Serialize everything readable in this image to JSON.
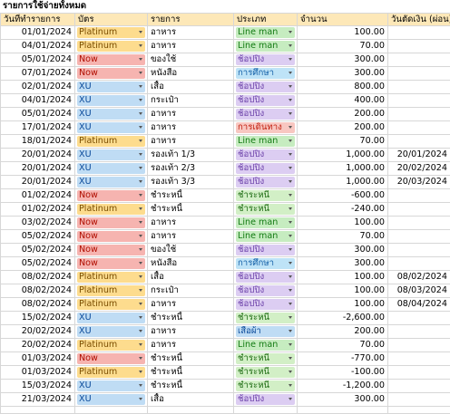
{
  "sheet": {
    "title": "รายการใช้จ่ายทั้งหมด",
    "headers": [
      "วันที่ทำรายการ",
      "บัตร",
      "รายการ",
      "ประเภท",
      "จำนวน",
      "วันตัดเงิน (ผ่อน)"
    ],
    "rows": [
      {
        "date": "01/01/2024",
        "card": "Platinum",
        "item": "อาหาร",
        "type": "Line man",
        "amount": "100.00",
        "due": ""
      },
      {
        "date": "04/01/2024",
        "card": "Platinum",
        "item": "อาหาร",
        "type": "Line man",
        "amount": "70.00",
        "due": ""
      },
      {
        "date": "05/01/2024",
        "card": "Now",
        "item": "ของใช้",
        "type": "ช้อปปิ้ง",
        "amount": "300.00",
        "due": ""
      },
      {
        "date": "07/01/2024",
        "card": "Now",
        "item": "หนังสือ",
        "type": "การศึกษา",
        "amount": "300.00",
        "due": ""
      },
      {
        "date": "02/01/2024",
        "card": "XU",
        "item": "เสื้อ",
        "type": "ช้อปปิ้ง",
        "amount": "800.00",
        "due": ""
      },
      {
        "date": "04/01/2024",
        "card": "XU",
        "item": "กระเป๋า",
        "type": "ช้อปปิ้ง",
        "amount": "400.00",
        "due": ""
      },
      {
        "date": "05/01/2024",
        "card": "XU",
        "item": "อาหาร",
        "type": "ช้อปปิ้ง",
        "amount": "200.00",
        "due": ""
      },
      {
        "date": "17/01/2024",
        "card": "XU",
        "item": "อาหาร",
        "type": "การเดินทาง",
        "amount": "200.00",
        "due": ""
      },
      {
        "date": "18/01/2024",
        "card": "Platinum",
        "item": "อาหาร",
        "type": "Line man",
        "amount": "70.00",
        "due": ""
      },
      {
        "date": "20/01/2024",
        "card": "XU",
        "item": "รองเท้า 1/3",
        "type": "ช้อปปิ้ง",
        "amount": "1,000.00",
        "due": "20/01/2024"
      },
      {
        "date": "20/01/2024",
        "card": "XU",
        "item": "รองเท้า 2/3",
        "type": "ช้อปปิ้ง",
        "amount": "1,000.00",
        "due": "20/02/2024"
      },
      {
        "date": "20/01/2024",
        "card": "XU",
        "item": "รองเท้า 3/3",
        "type": "ช้อปปิ้ง",
        "amount": "1,000.00",
        "due": "20/03/2024"
      },
      {
        "date": "01/02/2024",
        "card": "Now",
        "item": "ชำระหนี้",
        "type": "ชำระหนี้",
        "amount": "-600.00",
        "due": ""
      },
      {
        "date": "01/02/2024",
        "card": "Platinum",
        "item": "ชำระหนี้",
        "type": "ชำระหนี้",
        "amount": "-240.00",
        "due": ""
      },
      {
        "date": "03/02/2024",
        "card": "Now",
        "item": "อาหาร",
        "type": "Line man",
        "amount": "100.00",
        "due": ""
      },
      {
        "date": "05/02/2024",
        "card": "Now",
        "item": "อาหาร",
        "type": "Line man",
        "amount": "70.00",
        "due": ""
      },
      {
        "date": "05/02/2024",
        "card": "Now",
        "item": "ของใช้",
        "type": "ช้อปปิ้ง",
        "amount": "300.00",
        "due": ""
      },
      {
        "date": "05/02/2024",
        "card": "Now",
        "item": "หนังสือ",
        "type": "การศึกษา",
        "amount": "300.00",
        "due": ""
      },
      {
        "date": "08/02/2024",
        "card": "Platinum",
        "item": "เสื้อ",
        "type": "ช้อปปิ้ง",
        "amount": "100.00",
        "due": "08/02/2024"
      },
      {
        "date": "08/02/2024",
        "card": "Platinum",
        "item": "กระเป๋า",
        "type": "ช้อปปิ้ง",
        "amount": "100.00",
        "due": "08/03/2024"
      },
      {
        "date": "08/02/2024",
        "card": "Platinum",
        "item": "อาหาร",
        "type": "ช้อปปิ้ง",
        "amount": "100.00",
        "due": "08/04/2024"
      },
      {
        "date": "15/02/2024",
        "card": "XU",
        "item": "ชำระหนี้",
        "type": "ชำระหนี้",
        "amount": "-2,600.00",
        "due": ""
      },
      {
        "date": "20/02/2024",
        "card": "XU",
        "item": "อาหาร",
        "type": "เสื้อผ้า",
        "amount": "200.00",
        "due": ""
      },
      {
        "date": "20/02/2024",
        "card": "Platinum",
        "item": "อาหาร",
        "type": "Line man",
        "amount": "70.00",
        "due": ""
      },
      {
        "date": "01/03/2024",
        "card": "Now",
        "item": "ชำระหนี้",
        "type": "ชำระหนี้",
        "amount": "-770.00",
        "due": ""
      },
      {
        "date": "01/03/2024",
        "card": "Platinum",
        "item": "ชำระหนี้",
        "type": "ชำระหนี้",
        "amount": "-100.00",
        "due": ""
      },
      {
        "date": "15/03/2024",
        "card": "XU",
        "item": "ชำระหนี้",
        "type": "ชำระหนี้",
        "amount": "-1,200.00",
        "due": ""
      },
      {
        "date": "21/03/2024",
        "card": "XU",
        "item": "เสื้อ",
        "type": "ช้อปปิ้ง",
        "amount": "300.00",
        "due": ""
      }
    ]
  },
  "chip_colors": {
    "card": {
      "Platinum": "#fddc8e",
      "Now": "#f6b4b0",
      "XU": "#bfdcf4"
    },
    "type": {
      "Line man": "#c6ecc0",
      "ช้อปปิ้ง": "#dccdf2",
      "การศึกษา": "#bee3f7",
      "การเดินทาง": "#f8c7c1",
      "ชำระหนี้": "#d2efc6",
      "เสื้อผ้า": "#bfdcf4"
    },
    "icon": "dropdown-arrow-icon"
  }
}
